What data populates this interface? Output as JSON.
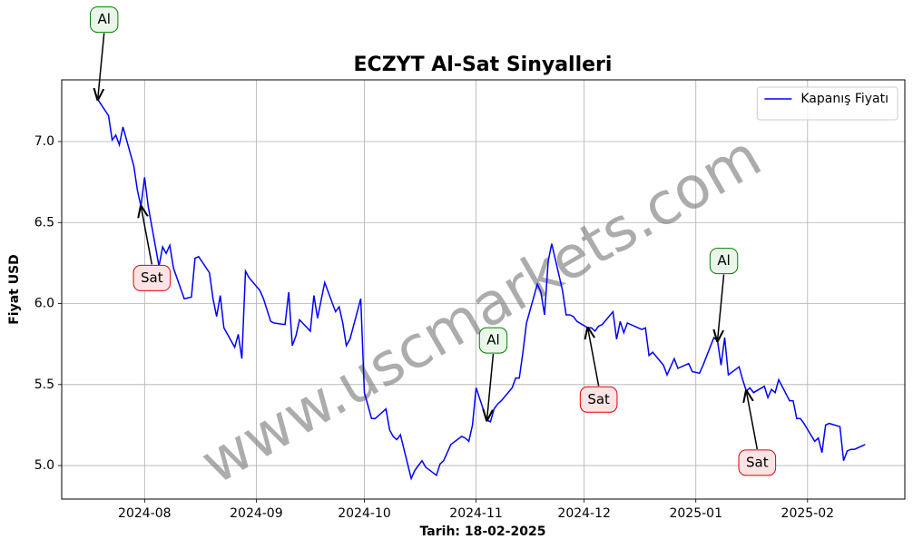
{
  "chart_data": {
    "type": "line",
    "title": "ECZYT Al-Sat Sinyalleri",
    "xlabel": "Tarih: 18-02-2025",
    "ylabel": "Fiyat USD",
    "watermark": "www.uscmarkets.com",
    "legend": "upper right",
    "grid": true,
    "xlim": [
      "2024-07-09",
      "2025-02-28"
    ],
    "xticks": [
      {
        "value": "2024-08-01",
        "label": "2024-08"
      },
      {
        "value": "2024-09-01",
        "label": "2024-09"
      },
      {
        "value": "2024-10-01",
        "label": "2024-10"
      },
      {
        "value": "2024-11-01",
        "label": "2024-11"
      },
      {
        "value": "2024-12-01",
        "label": "2024-12"
      },
      {
        "value": "2025-01-01",
        "label": "2025-01"
      },
      {
        "value": "2025-02-01",
        "label": "2025-02"
      }
    ],
    "ylim": [
      4.793,
      7.381
    ],
    "yticks": [
      {
        "value": 5,
        "label": "5.0"
      },
      5.5,
      {
        "value": 6,
        "label": "6.0"
      },
      6.5,
      {
        "value": 7,
        "label": "7.0"
      }
    ],
    "x": [
      "2024-07-19",
      "2024-07-22",
      "2024-07-23",
      "2024-07-24",
      "2024-07-25",
      "2024-07-26",
      "2024-07-29",
      "2024-07-30",
      "2024-07-31",
      "2024-08-01",
      "2024-08-02",
      "2024-08-05",
      "2024-08-06",
      "2024-08-07",
      "2024-08-08",
      "2024-08-09",
      "2024-08-12",
      "2024-08-14",
      "2024-08-15",
      "2024-08-16",
      "2024-08-19",
      "2024-08-20",
      "2024-08-21",
      "2024-08-22",
      "2024-08-23",
      "2024-08-26",
      "2024-08-27",
      "2024-08-28",
      "2024-08-29",
      "2024-08-30",
      "2024-09-02",
      "2024-09-03",
      "2024-09-05",
      "2024-09-06",
      "2024-09-09",
      "2024-09-10",
      "2024-09-11",
      "2024-09-12",
      "2024-09-13",
      "2024-09-16",
      "2024-09-17",
      "2024-09-18",
      "2024-09-19",
      "2024-09-20",
      "2024-09-23",
      "2024-09-24",
      "2024-09-25",
      "2024-09-26",
      "2024-09-27",
      "2024-09-30",
      "2024-10-01",
      "2024-10-02",
      "2024-10-03",
      "2024-10-04",
      "2024-10-07",
      "2024-10-08",
      "2024-10-09",
      "2024-10-10",
      "2024-10-11",
      "2024-10-14",
      "2024-10-15",
      "2024-10-16",
      "2024-10-17",
      "2024-10-18",
      "2024-10-21",
      "2024-10-22",
      "2024-10-23",
      "2024-10-24",
      "2024-10-25",
      "2024-10-28",
      "2024-10-29",
      "2024-10-30",
      "2024-10-31",
      "2024-11-01",
      "2024-11-04",
      "2024-11-05",
      "2024-11-06",
      "2024-11-07",
      "2024-11-08",
      "2024-11-11",
      "2024-11-12",
      "2024-11-13",
      "2024-11-14",
      "2024-11-15",
      "2024-11-18",
      "2024-11-19",
      "2024-11-20",
      "2024-11-21",
      "2024-11-22",
      "2024-11-25",
      "2024-11-26",
      "2024-11-27",
      "2024-11-28",
      "2024-11-29",
      "2024-12-02",
      "2024-12-03",
      "2024-12-04",
      "2024-12-05",
      "2024-12-06",
      "2024-12-09",
      "2024-12-10",
      "2024-12-11",
      "2024-12-12",
      "2024-12-13",
      "2024-12-16",
      "2024-12-17",
      "2024-12-18",
      "2024-12-19",
      "2024-12-20",
      "2024-12-23",
      "2024-12-24",
      "2024-12-26",
      "2024-12-27",
      "2024-12-30",
      "2024-12-31",
      "2025-01-02",
      "2025-01-03",
      "2025-01-06",
      "2025-01-07",
      "2025-01-08",
      "2025-01-09",
      "2025-01-10",
      "2025-01-13",
      "2025-01-14",
      "2025-01-15",
      "2025-01-16",
      "2025-01-17",
      "2025-01-20",
      "2025-01-21",
      "2025-01-22",
      "2025-01-23",
      "2025-01-24",
      "2025-01-27",
      "2025-01-28",
      "2025-01-29",
      "2025-01-30",
      "2025-01-31",
      "2025-02-03",
      "2025-02-04",
      "2025-02-05",
      "2025-02-06",
      "2025-02-07",
      "2025-02-10",
      "2025-02-11",
      "2025-02-12",
      "2025-02-13",
      "2025-02-14",
      "2025-02-17"
    ],
    "series": [
      {
        "name": "Kapanış Fiyatı",
        "color": "#0000ff",
        "values": [
          7.26,
          7.16,
          7.01,
          7.04,
          6.98,
          7.09,
          6.85,
          6.7,
          6.6,
          6.78,
          6.6,
          6.23,
          6.35,
          6.31,
          6.36,
          6.22,
          6.03,
          6.04,
          6.28,
          6.29,
          6.19,
          6.03,
          5.92,
          6.05,
          5.85,
          5.73,
          5.81,
          5.66,
          6.2,
          6.16,
          6.08,
          6.03,
          5.89,
          5.88,
          5.87,
          6.07,
          5.74,
          5.8,
          5.9,
          5.83,
          6.05,
          5.91,
          6.02,
          6.13,
          5.95,
          5.98,
          5.88,
          5.74,
          5.78,
          6.03,
          5.45,
          5.37,
          5.29,
          5.29,
          5.35,
          5.22,
          5.18,
          5.16,
          5.19,
          4.92,
          4.97,
          5.0,
          5.03,
          4.99,
          4.94,
          5.01,
          5.03,
          5.08,
          5.13,
          5.18,
          5.17,
          5.15,
          5.25,
          5.48,
          5.28,
          5.27,
          5.35,
          5.38,
          5.4,
          5.48,
          5.54,
          5.54,
          5.7,
          5.88,
          6.12,
          6.07,
          5.93,
          6.26,
          6.37,
          6.08,
          5.93,
          5.93,
          5.92,
          5.89,
          5.85,
          5.85,
          5.83,
          5.86,
          5.87,
          5.95,
          5.78,
          5.89,
          5.82,
          5.88,
          5.85,
          5.84,
          5.85,
          5.68,
          5.7,
          5.62,
          5.56,
          5.66,
          5.6,
          5.63,
          5.58,
          5.57,
          5.62,
          5.79,
          5.77,
          5.62,
          5.79,
          5.56,
          5.61,
          5.53,
          5.46,
          5.48,
          5.45,
          5.49,
          5.42,
          5.47,
          5.45,
          5.53,
          5.4,
          5.4,
          5.29,
          5.29,
          5.26,
          5.15,
          5.17,
          5.08,
          5.25,
          5.26,
          5.24,
          5.03,
          5.09,
          5.1,
          5.1,
          5.13
        ]
      }
    ],
    "annotations": [
      {
        "text": "Al",
        "x": "2024-07-19",
        "y": 7.26,
        "position": "above",
        "color": "#008000",
        "fill": "#eaf6ea"
      },
      {
        "text": "Sat",
        "x": "2024-07-31",
        "y": 6.6,
        "position": "below",
        "color": "#e00000",
        "fill": "#fde3e3"
      },
      {
        "text": "Al",
        "x": "2024-11-04",
        "y": 5.28,
        "position": "above",
        "color": "#008000",
        "fill": "#eaf6ea"
      },
      {
        "text": "Sat",
        "x": "2024-12-02",
        "y": 5.85,
        "position": "below",
        "color": "#e00000",
        "fill": "#fde3e3"
      },
      {
        "text": "Al",
        "x": "2025-01-07",
        "y": 5.77,
        "position": "above",
        "color": "#008000",
        "fill": "#eaf6ea"
      },
      {
        "text": "Sat",
        "x": "2025-01-15",
        "y": 5.46,
        "position": "below",
        "color": "#e00000",
        "fill": "#fde3e3"
      }
    ]
  }
}
